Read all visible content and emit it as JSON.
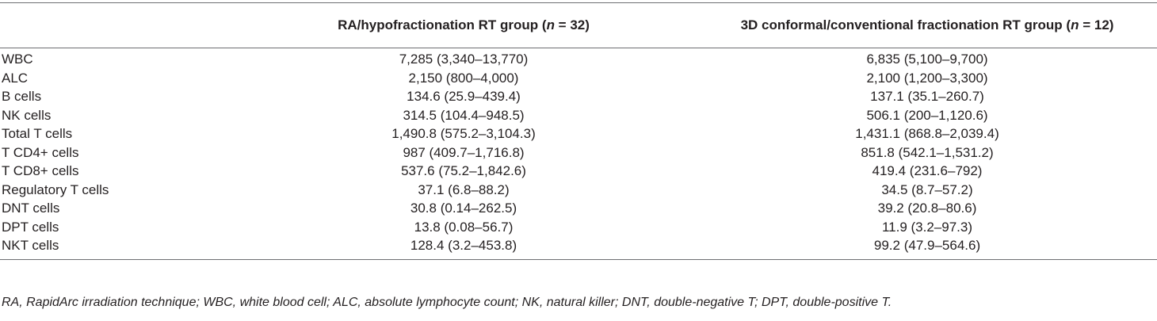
{
  "table": {
    "header": [
      "",
      [
        {
          "text": "RA/hypofractionation RT group ("
        },
        {
          "text": "n",
          "italic": true
        },
        {
          "text": " = 32)"
        }
      ],
      [
        {
          "text": "3D conformal/conventional fractionation RT group ("
        },
        {
          "text": "n",
          "italic": true
        },
        {
          "text": " = 12)"
        }
      ]
    ],
    "rows": [
      [
        "WBC",
        "7,285 (3,340–13,770)",
        "6,835 (5,100–9,700)"
      ],
      [
        "ALC",
        "2,150 (800–4,000)",
        "2,100 (1,200–3,300)"
      ],
      [
        "B cells",
        "134.6 (25.9–439.4)",
        "137.1 (35.1–260.7)"
      ],
      [
        "NK cells",
        "314.5 (104.4–948.5)",
        "506.1 (200–1,120.6)"
      ],
      [
        "Total T cells",
        "1,490.8 (575.2–3,104.3)",
        "1,431.1 (868.8–2,039.4)"
      ],
      [
        "T CD4+ cells",
        "987 (409.7–1,716.8)",
        "851.8 (542.1–1,531.2)"
      ],
      [
        "T CD8+ cells",
        "537.6 (75.2–1,842.6)",
        "419.4 (231.6–792)"
      ],
      [
        "Regulatory T cells",
        "37.1 (6.8–88.2)",
        "34.5 (8.7–57.2)"
      ],
      [
        "DNT cells",
        "30.8 (0.14–262.5)",
        "39.2 (20.8–80.6)"
      ],
      [
        "DPT cells",
        "13.8 (0.08–56.7)",
        "11.9 (3.2–97.3)"
      ],
      [
        "NKT cells",
        "128.4 (3.2–453.8)",
        "99.2 (47.9–564.6)"
      ]
    ],
    "footnote": "RA, RapidArc irradiation technique; WBC, white blood cell; ALC, absolute lymphocyte count; NK, natural killer; DNT, double-negative T; DPT, double-positive T."
  }
}
